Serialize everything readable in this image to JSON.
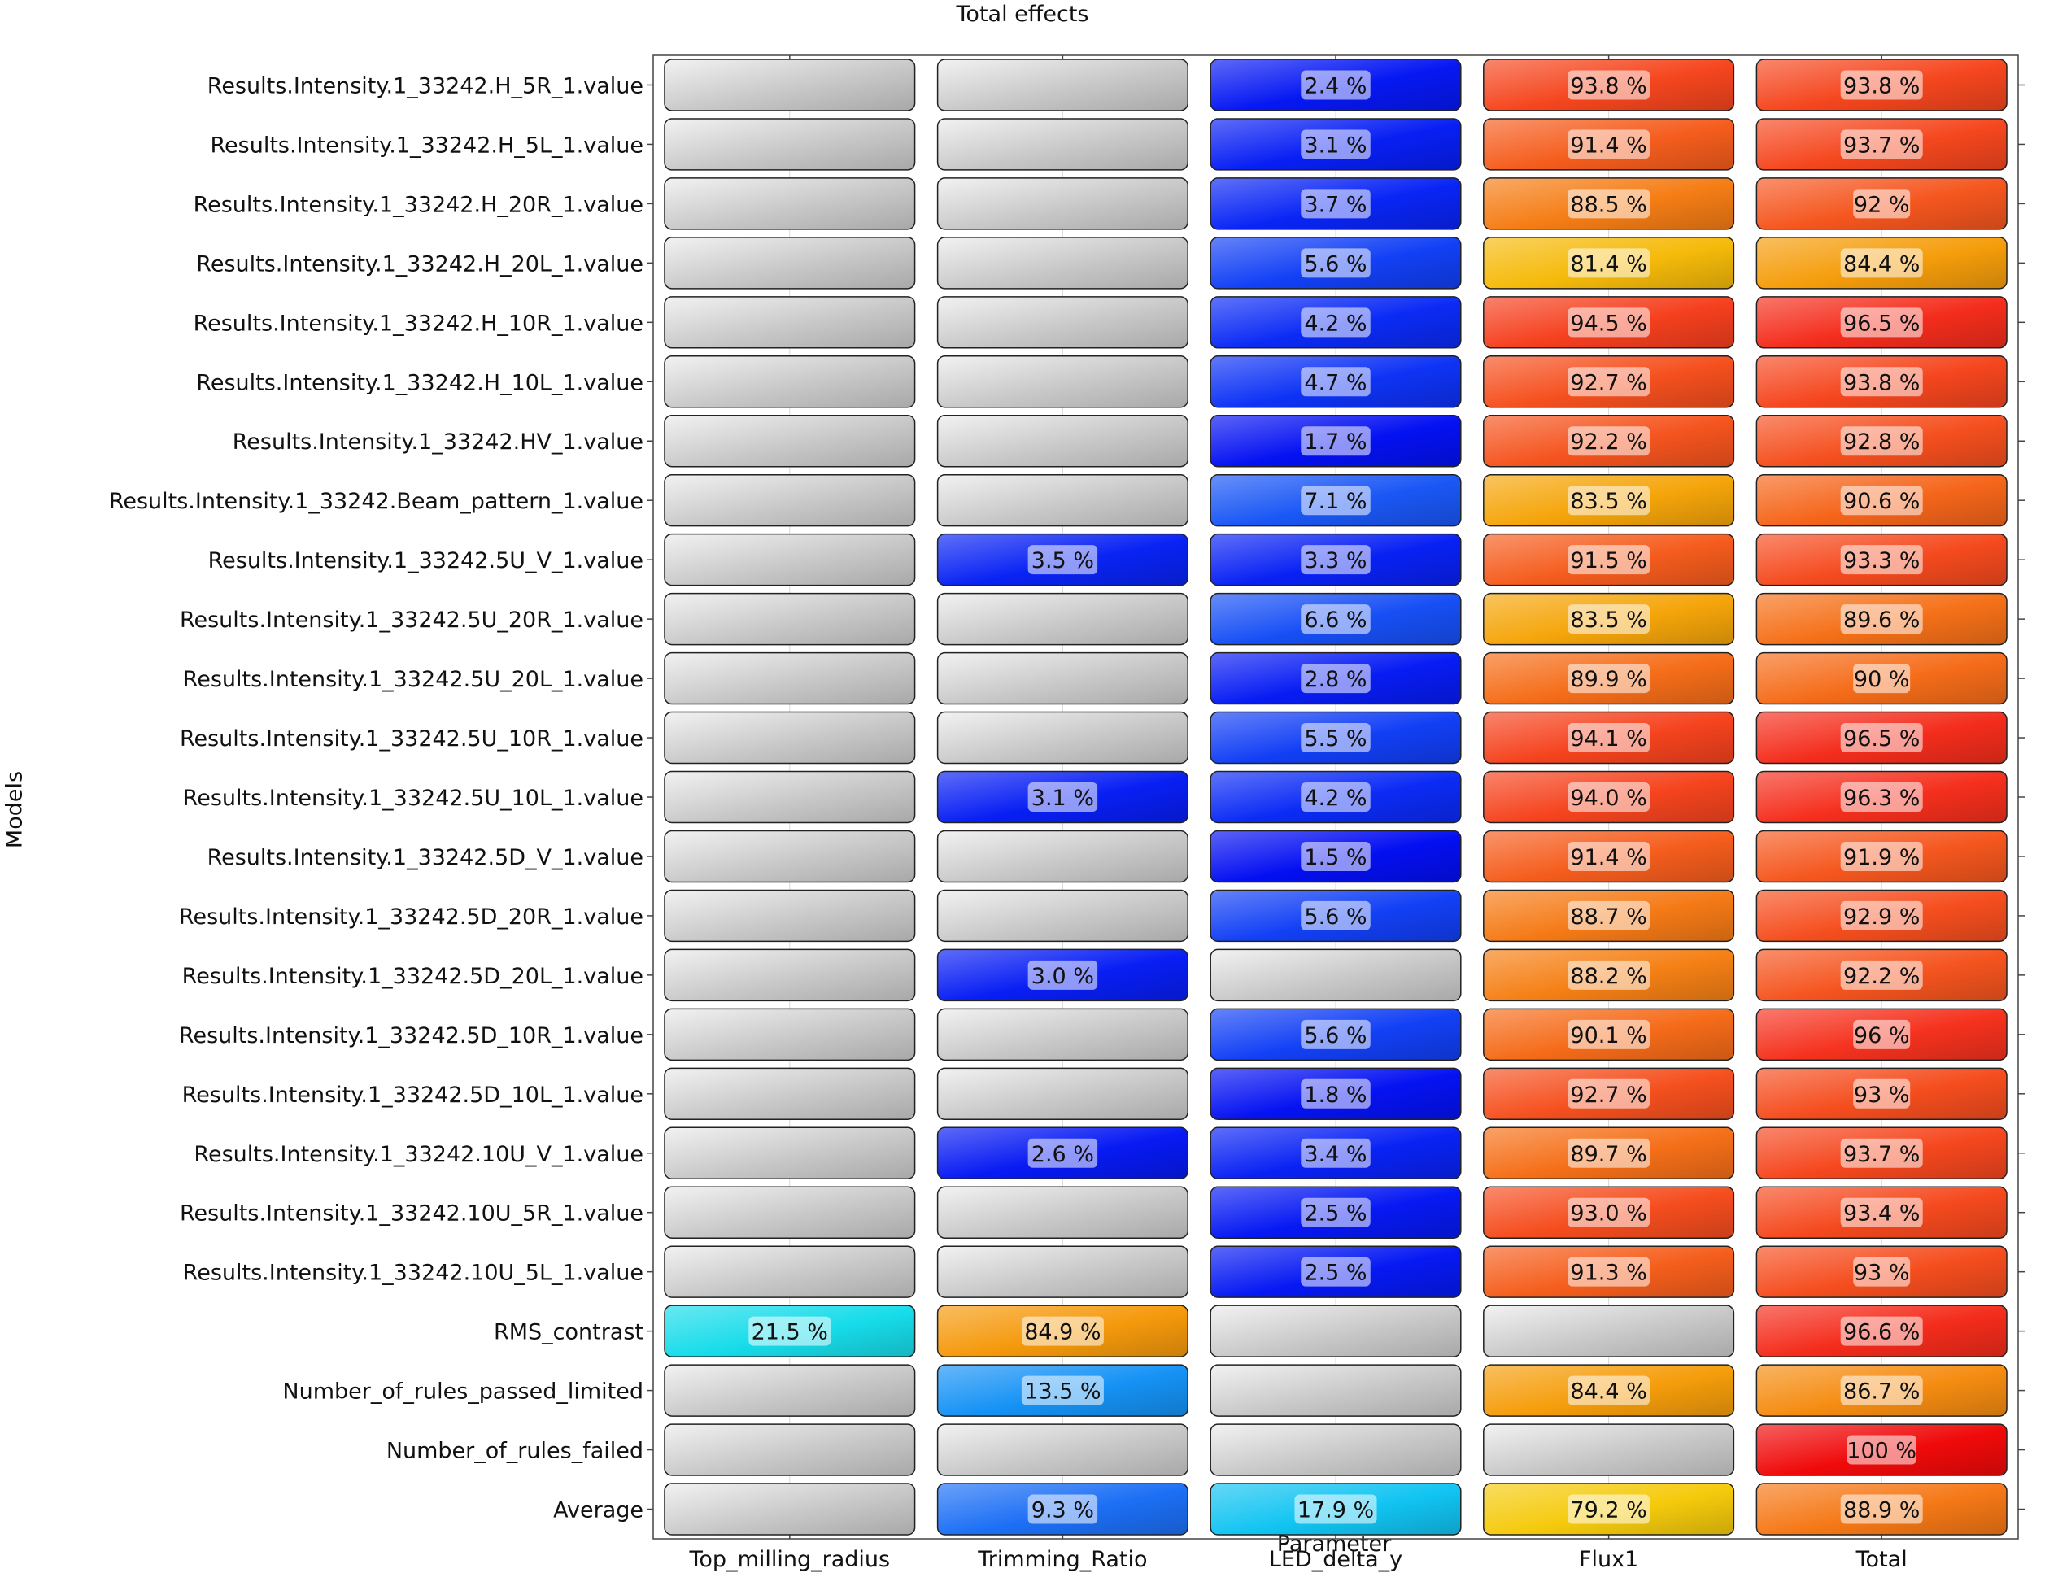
{
  "chart_data": {
    "type": "heatmap",
    "title": "Total effects",
    "xlabel": "Parameter",
    "ylabel": "Models",
    "columns": [
      "Top_milling_radius",
      "Trimming_Ratio",
      "LED_delta_y",
      "Flux1",
      "Total"
    ],
    "rows": [
      "Results.Intensity.1_33242.H_5R_1.value",
      "Results.Intensity.1_33242.H_5L_1.value",
      "Results.Intensity.1_33242.H_20R_1.value",
      "Results.Intensity.1_33242.H_20L_1.value",
      "Results.Intensity.1_33242.H_10R_1.value",
      "Results.Intensity.1_33242.H_10L_1.value",
      "Results.Intensity.1_33242.HV_1.value",
      "Results.Intensity.1_33242.Beam_pattern_1.value",
      "Results.Intensity.1_33242.5U_V_1.value",
      "Results.Intensity.1_33242.5U_20R_1.value",
      "Results.Intensity.1_33242.5U_20L_1.value",
      "Results.Intensity.1_33242.5U_10R_1.value",
      "Results.Intensity.1_33242.5U_10L_1.value",
      "Results.Intensity.1_33242.5D_V_1.value",
      "Results.Intensity.1_33242.5D_20R_1.value",
      "Results.Intensity.1_33242.5D_20L_1.value",
      "Results.Intensity.1_33242.5D_10R_1.value",
      "Results.Intensity.1_33242.5D_10L_1.value",
      "Results.Intensity.1_33242.10U_V_1.value",
      "Results.Intensity.1_33242.10U_5R_1.value",
      "Results.Intensity.1_33242.10U_5L_1.value",
      "RMS_contrast",
      "Number_of_rules_passed_limited",
      "Number_of_rules_failed",
      "Average"
    ],
    "cells": [
      [
        null,
        null,
        "2.4 %",
        "93.8 %",
        "93.8 %"
      ],
      [
        null,
        null,
        "3.1 %",
        "91.4 %",
        "93.7 %"
      ],
      [
        null,
        null,
        "3.7 %",
        "88.5 %",
        "92 %"
      ],
      [
        null,
        null,
        "5.6 %",
        "81.4 %",
        "84.4 %"
      ],
      [
        null,
        null,
        "4.2 %",
        "94.5 %",
        "96.5 %"
      ],
      [
        null,
        null,
        "4.7 %",
        "92.7 %",
        "93.8 %"
      ],
      [
        null,
        null,
        "1.7 %",
        "92.2 %",
        "92.8 %"
      ],
      [
        null,
        null,
        "7.1 %",
        "83.5 %",
        "90.6 %"
      ],
      [
        null,
        "3.5 %",
        "3.3 %",
        "91.5 %",
        "93.3 %"
      ],
      [
        null,
        null,
        "6.6 %",
        "83.5 %",
        "89.6 %"
      ],
      [
        null,
        null,
        "2.8 %",
        "89.9 %",
        "90 %"
      ],
      [
        null,
        null,
        "5.5 %",
        "94.1 %",
        "96.5 %"
      ],
      [
        null,
        "3.1 %",
        "4.2 %",
        "94.0 %",
        "96.3 %"
      ],
      [
        null,
        null,
        "1.5 %",
        "91.4 %",
        "91.9 %"
      ],
      [
        null,
        null,
        "5.6 %",
        "88.7 %",
        "92.9 %"
      ],
      [
        null,
        "3.0 %",
        null,
        "88.2 %",
        "92.2 %"
      ],
      [
        null,
        null,
        "5.6 %",
        "90.1 %",
        "96 %"
      ],
      [
        null,
        null,
        "1.8 %",
        "92.7 %",
        "93 %"
      ],
      [
        null,
        "2.6 %",
        "3.4 %",
        "89.7 %",
        "93.7 %"
      ],
      [
        null,
        null,
        "2.5 %",
        "93.0 %",
        "93.4 %"
      ],
      [
        null,
        null,
        "2.5 %",
        "91.3 %",
        "93 %"
      ],
      [
        "21.5 %",
        "84.9 %",
        null,
        null,
        "96.6 %"
      ],
      [
        null,
        "13.5 %",
        null,
        "84.4 %",
        "86.7 %"
      ],
      [
        null,
        null,
        null,
        null,
        "100 %"
      ],
      [
        null,
        "9.3 %",
        "17.9 %",
        "79.2 %",
        "88.9 %"
      ]
    ],
    "grid": true,
    "colors": {
      "empty": "#c4c4c4",
      "low": "#0a1ef0",
      "mid_low": "#1e6ef0",
      "cyan": "#1ed8f0",
      "yellow": "#f5d20a",
      "orange": "#f58214",
      "red": "#f02814"
    }
  }
}
